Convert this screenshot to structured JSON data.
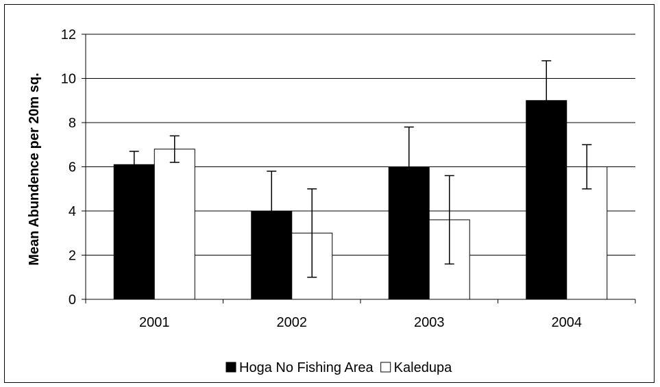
{
  "chart_data": {
    "type": "bar",
    "title": "",
    "xlabel": "",
    "ylabel": "Mean Abundence per 20m sq.",
    "ylim": [
      0,
      12
    ],
    "yticks": [
      0,
      2,
      4,
      6,
      8,
      10,
      12
    ],
    "categories": [
      "2001",
      "2002",
      "2003",
      "2004"
    ],
    "grid": true,
    "legend_position": "bottom",
    "series": [
      {
        "name": "Hoga No Fishing Area",
        "color": "#000000",
        "values": [
          6.1,
          4.0,
          6.0,
          9.0
        ],
        "error": [
          0.6,
          1.8,
          1.8,
          1.8
        ]
      },
      {
        "name": "Kaledupa",
        "color": "#ffffff",
        "values": [
          6.8,
          3.0,
          3.6,
          6.0
        ],
        "error": [
          0.6,
          2.0,
          2.0,
          1.0
        ]
      }
    ]
  }
}
